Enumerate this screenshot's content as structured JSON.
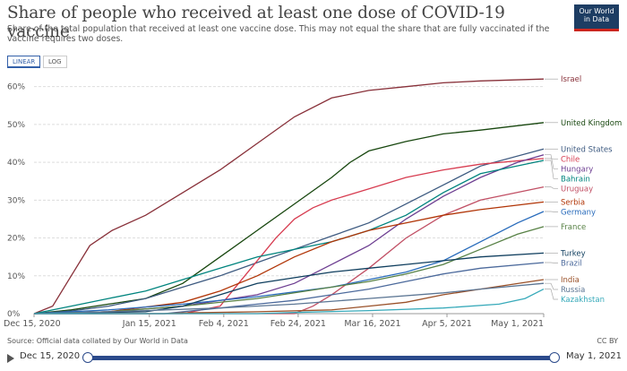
{
  "header": {
    "title": "Share of people who received at least one dose of COVID-19 vaccine",
    "subtitle": "Share of the total population that received at least one vaccine dose. This may not equal the share that are fully vaccinated if the vaccine requires two doses.",
    "logo_line1": "Our World",
    "logo_line2": "in Data"
  },
  "controls": {
    "linear_label": "LINEAR",
    "log_label": "LOG",
    "active": "LINEAR"
  },
  "footer": {
    "source": "Source: Official data collated by Our World in Data",
    "license": "CC BY"
  },
  "timeline": {
    "start_label": "Dec 15, 2020",
    "end_label": "May 1, 2021"
  },
  "colors": {
    "axis": "#999999",
    "grid": "#dddddd",
    "text": "#555555",
    "accent": "#2b4a8b"
  },
  "chart_data": {
    "type": "line",
    "title": "Share of people who received at least one dose of COVID-19 vaccine",
    "x_ticks": [
      "Dec 15, 2020",
      "Jan 15, 2021",
      "Feb 4, 2021",
      "Feb 24, 2021",
      "Mar 16, 2021",
      "Apr 5, 2021",
      "May 1, 2021"
    ],
    "x_tick_days": [
      0,
      31,
      51,
      71,
      91,
      111,
      137
    ],
    "y_ticks": [
      "0%",
      "10%",
      "20%",
      "30%",
      "40%",
      "50%",
      "60%"
    ],
    "ylim": [
      0,
      63
    ],
    "grid": true,
    "x_start": "Dec 15, 2020",
    "series": [
      {
        "name": "Israel",
        "color": "#883039",
        "points": [
          [
            0,
            0
          ],
          [
            5,
            2
          ],
          [
            10,
            10
          ],
          [
            15,
            18
          ],
          [
            21,
            22
          ],
          [
            30,
            26
          ],
          [
            40,
            32
          ],
          [
            50,
            38
          ],
          [
            60,
            45
          ],
          [
            70,
            52
          ],
          [
            80,
            57
          ],
          [
            90,
            59
          ],
          [
            100,
            60
          ],
          [
            110,
            61
          ],
          [
            120,
            61.5
          ],
          [
            137,
            62
          ]
        ]
      },
      {
        "name": "United Kingdom",
        "color": "#18470f",
        "points": [
          [
            0,
            0
          ],
          [
            10,
            1
          ],
          [
            20,
            2.5
          ],
          [
            30,
            4
          ],
          [
            40,
            8
          ],
          [
            50,
            15
          ],
          [
            60,
            22
          ],
          [
            70,
            29
          ],
          [
            80,
            36
          ],
          [
            85,
            40
          ],
          [
            90,
            43
          ],
          [
            100,
            45.5
          ],
          [
            110,
            47.5
          ],
          [
            120,
            48.5
          ],
          [
            137,
            50.5
          ]
        ]
      },
      {
        "name": "United States",
        "color": "#3d5a80",
        "points": [
          [
            0,
            0
          ],
          [
            10,
            0.7
          ],
          [
            20,
            2
          ],
          [
            30,
            4
          ],
          [
            40,
            7
          ],
          [
            50,
            10
          ],
          [
            60,
            13.5
          ],
          [
            70,
            17
          ],
          [
            80,
            20.5
          ],
          [
            90,
            24
          ],
          [
            100,
            29
          ],
          [
            110,
            34
          ],
          [
            120,
            39
          ],
          [
            137,
            43.5
          ]
        ]
      },
      {
        "name": "Chile",
        "color": "#d73c50",
        "points": [
          [
            0,
            0
          ],
          [
            40,
            0
          ],
          [
            50,
            2
          ],
          [
            55,
            8
          ],
          [
            60,
            14
          ],
          [
            65,
            20
          ],
          [
            70,
            25
          ],
          [
            75,
            28
          ],
          [
            80,
            30
          ],
          [
            90,
            33
          ],
          [
            100,
            36
          ],
          [
            110,
            38
          ],
          [
            120,
            39.5
          ],
          [
            137,
            41
          ]
        ]
      },
      {
        "name": "Hungary",
        "color": "#6d3e91",
        "points": [
          [
            0,
            0
          ],
          [
            20,
            0.5
          ],
          [
            40,
            2
          ],
          [
            60,
            5
          ],
          [
            70,
            8
          ],
          [
            80,
            13
          ],
          [
            90,
            18
          ],
          [
            100,
            25
          ],
          [
            110,
            31
          ],
          [
            120,
            36
          ],
          [
            130,
            40
          ],
          [
            137,
            42
          ]
        ]
      },
      {
        "name": "Bahrain",
        "color": "#00847e",
        "points": [
          [
            0,
            0
          ],
          [
            10,
            2
          ],
          [
            20,
            4
          ],
          [
            30,
            6
          ],
          [
            40,
            9
          ],
          [
            50,
            12
          ],
          [
            60,
            15
          ],
          [
            70,
            17
          ],
          [
            80,
            19
          ],
          [
            90,
            22
          ],
          [
            100,
            26
          ],
          [
            110,
            32
          ],
          [
            120,
            37
          ],
          [
            137,
            40.5
          ]
        ]
      },
      {
        "name": "Uruguay",
        "color": "#c15065",
        "points": [
          [
            0,
            0
          ],
          [
            70,
            0
          ],
          [
            75,
            2
          ],
          [
            80,
            5
          ],
          [
            90,
            12
          ],
          [
            100,
            20
          ],
          [
            110,
            26
          ],
          [
            120,
            30
          ],
          [
            137,
            33.5
          ]
        ]
      },
      {
        "name": "Serbia",
        "color": "#b13507",
        "points": [
          [
            0,
            0
          ],
          [
            20,
            0.5
          ],
          [
            40,
            3
          ],
          [
            50,
            6
          ],
          [
            60,
            10
          ],
          [
            70,
            15
          ],
          [
            80,
            19
          ],
          [
            90,
            22
          ],
          [
            100,
            24
          ],
          [
            110,
            26
          ],
          [
            120,
            27.5
          ],
          [
            137,
            29.5
          ]
        ]
      },
      {
        "name": "Germany",
        "color": "#286bbb",
        "points": [
          [
            0,
            0
          ],
          [
            20,
            1
          ],
          [
            40,
            2.5
          ],
          [
            60,
            4.5
          ],
          [
            80,
            7
          ],
          [
            90,
            9
          ],
          [
            100,
            11
          ],
          [
            110,
            14
          ],
          [
            120,
            19
          ],
          [
            130,
            24
          ],
          [
            137,
            27
          ]
        ]
      },
      {
        "name": "France",
        "color": "#578145",
        "points": [
          [
            0,
            0
          ],
          [
            20,
            0.5
          ],
          [
            40,
            2
          ],
          [
            60,
            4
          ],
          [
            80,
            7
          ],
          [
            90,
            8.5
          ],
          [
            100,
            10.5
          ],
          [
            110,
            13
          ],
          [
            120,
            17
          ],
          [
            130,
            21
          ],
          [
            137,
            23
          ]
        ]
      },
      {
        "name": "Turkey",
        "color": "#0f3e5e",
        "points": [
          [
            0,
            0
          ],
          [
            30,
            0.5
          ],
          [
            40,
            2
          ],
          [
            50,
            5
          ],
          [
            60,
            8
          ],
          [
            70,
            9.5
          ],
          [
            80,
            11
          ],
          [
            90,
            12
          ],
          [
            100,
            13
          ],
          [
            110,
            14
          ],
          [
            120,
            15
          ],
          [
            137,
            16
          ]
        ]
      },
      {
        "name": "Brazil",
        "color": "#4c6a9c",
        "points": [
          [
            0,
            0
          ],
          [
            35,
            0
          ],
          [
            40,
            0.5
          ],
          [
            50,
            1.5
          ],
          [
            60,
            2.5
          ],
          [
            70,
            3.5
          ],
          [
            80,
            5
          ],
          [
            90,
            6.5
          ],
          [
            100,
            8.5
          ],
          [
            110,
            10.5
          ],
          [
            120,
            12
          ],
          [
            137,
            13.5
          ]
        ]
      },
      {
        "name": "India",
        "color": "#9a5129",
        "points": [
          [
            0,
            0
          ],
          [
            35,
            0
          ],
          [
            40,
            0.2
          ],
          [
            60,
            0.5
          ],
          [
            80,
            1
          ],
          [
            90,
            2
          ],
          [
            100,
            3
          ],
          [
            110,
            5
          ],
          [
            120,
            6.5
          ],
          [
            137,
            9
          ]
        ]
      },
      {
        "name": "Russia",
        "color": "#5b7593",
        "points": [
          [
            0,
            0
          ],
          [
            10,
            0.2
          ],
          [
            30,
            0.8
          ],
          [
            50,
            1.5
          ],
          [
            70,
            2.5
          ],
          [
            90,
            4
          ],
          [
            110,
            5.5
          ],
          [
            120,
            6.5
          ],
          [
            137,
            8
          ]
        ]
      },
      {
        "name": "Kazakhstan",
        "color": "#38aaba",
        "points": [
          [
            0,
            0
          ],
          [
            60,
            0
          ],
          [
            70,
            0.3
          ],
          [
            90,
            0.8
          ],
          [
            110,
            1.5
          ],
          [
            125,
            2.5
          ],
          [
            132,
            4
          ],
          [
            137,
            6.5
          ]
        ]
      }
    ],
    "label_order": [
      "Israel",
      "United Kingdom",
      "United States",
      "Chile",
      "Hungary",
      "Bahrain",
      "Uruguay",
      "Serbia",
      "Germany",
      "France",
      "Turkey",
      "Brazil",
      "India",
      "Russia",
      "Kazakhstan"
    ]
  }
}
